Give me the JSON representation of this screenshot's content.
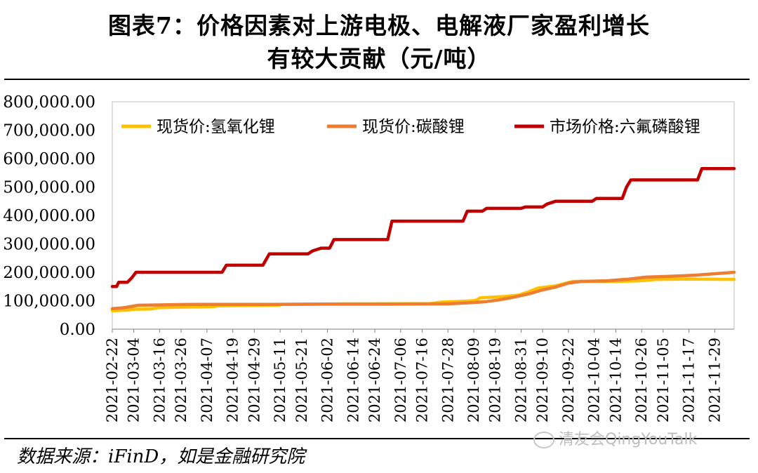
{
  "header": {
    "title_line1": "图表7：价格因素对上游电极、电解液厂家盈利增长",
    "title_line2": "有较大贡献（元/吨）"
  },
  "footer": {
    "source": "数据来源：iFinD，如是金融研究院",
    "watermark": "清友会QingYouTalk"
  },
  "chart_data": {
    "type": "line",
    "title": "图表7：价格因素对上游电极、电解液厂家盈利增长有较大贡献（元/吨）",
    "xlabel": "",
    "ylabel": "",
    "ylim": [
      0,
      800000
    ],
    "yticks": [
      "800,000.00",
      "700,000.00",
      "600,000.00",
      "500,000.00",
      "400,000.00",
      "300,000.00",
      "200,000.00",
      "100,000.00",
      "0.00"
    ],
    "ytick_values": [
      800000,
      700000,
      600000,
      500000,
      400000,
      300000,
      200000,
      100000,
      0
    ],
    "xlim": [
      "2021-02-22",
      "2021-12-08"
    ],
    "xticks": [
      "2021-02-22",
      "2021-03-04",
      "2021-03-16",
      "2021-03-26",
      "2021-04-07",
      "2021-04-19",
      "2021-04-29",
      "2021-05-11",
      "2021-05-21",
      "2021-06-02",
      "2021-06-14",
      "2021-06-24",
      "2021-07-06",
      "2021-07-16",
      "2021-07-28",
      "2021-08-09",
      "2021-08-19",
      "2021-08-31",
      "2021-09-10",
      "2021-09-22",
      "2021-10-04",
      "2021-10-14",
      "2021-10-26",
      "2021-11-05",
      "2021-11-17",
      "2021-11-29"
    ],
    "grid": false,
    "legend_position": "top",
    "series": [
      {
        "name": "现货价:氢氧化锂",
        "color": "#FFC000",
        "points": [
          [
            "2021-02-22",
            65000
          ],
          [
            "2021-03-01",
            67000
          ],
          [
            "2021-03-04",
            70000
          ],
          [
            "2021-03-12",
            71000
          ],
          [
            "2021-03-16",
            76000
          ],
          [
            "2021-04-10",
            79000
          ],
          [
            "2021-04-12",
            82000
          ],
          [
            "2021-05-10",
            84000
          ],
          [
            "2021-05-12",
            87000
          ],
          [
            "2021-06-10",
            89000
          ],
          [
            "2021-07-20",
            90000
          ],
          [
            "2021-07-25",
            95000
          ],
          [
            "2021-08-05",
            98000
          ],
          [
            "2021-08-10",
            101000
          ],
          [
            "2021-08-12",
            110000
          ],
          [
            "2021-08-24",
            115000
          ],
          [
            "2021-08-30",
            120000
          ],
          [
            "2021-09-03",
            130000
          ],
          [
            "2021-09-08",
            145000
          ],
          [
            "2021-09-16",
            152000
          ],
          [
            "2021-09-20",
            160000
          ],
          [
            "2021-09-24",
            168000
          ],
          [
            "2021-10-01",
            168000
          ],
          [
            "2021-10-14",
            168000
          ],
          [
            "2021-10-25",
            170000
          ],
          [
            "2021-11-02",
            175000
          ],
          [
            "2021-11-15",
            176000
          ],
          [
            "2021-12-08",
            175000
          ]
        ]
      },
      {
        "name": "现货价:碳酸锂",
        "color": "#ED7D31",
        "points": [
          [
            "2021-02-22",
            72000
          ],
          [
            "2021-02-27",
            75000
          ],
          [
            "2021-03-03",
            80000
          ],
          [
            "2021-03-06",
            84000
          ],
          [
            "2021-03-20",
            86000
          ],
          [
            "2021-04-01",
            87000
          ],
          [
            "2021-05-01",
            87000
          ],
          [
            "2021-06-01",
            88000
          ],
          [
            "2021-07-01",
            88000
          ],
          [
            "2021-07-28",
            89000
          ],
          [
            "2021-08-08",
            93000
          ],
          [
            "2021-08-15",
            97000
          ],
          [
            "2021-08-20",
            102000
          ],
          [
            "2021-08-26",
            110000
          ],
          [
            "2021-08-31",
            118000
          ],
          [
            "2021-09-04",
            125000
          ],
          [
            "2021-09-10",
            138000
          ],
          [
            "2021-09-16",
            148000
          ],
          [
            "2021-09-22",
            162000
          ],
          [
            "2021-09-28",
            168000
          ],
          [
            "2021-10-10",
            170000
          ],
          [
            "2021-10-20",
            176000
          ],
          [
            "2021-10-28",
            183000
          ],
          [
            "2021-11-08",
            186000
          ],
          [
            "2021-11-20",
            190000
          ],
          [
            "2021-12-08",
            200000
          ]
        ]
      },
      {
        "name": "市场价格:六氟磷酸锂",
        "color": "#C00000",
        "points": [
          [
            "2021-02-22",
            150000
          ],
          [
            "2021-02-24",
            150000
          ],
          [
            "2021-02-25",
            165000
          ],
          [
            "2021-03-01",
            165000
          ],
          [
            "2021-03-03",
            180000
          ],
          [
            "2021-03-05",
            200000
          ],
          [
            "2021-04-14",
            200000
          ],
          [
            "2021-04-16",
            225000
          ],
          [
            "2021-05-03",
            225000
          ],
          [
            "2021-05-06",
            265000
          ],
          [
            "2021-05-24",
            265000
          ],
          [
            "2021-05-26",
            275000
          ],
          [
            "2021-05-30",
            285000
          ],
          [
            "2021-06-03",
            285000
          ],
          [
            "2021-06-05",
            315000
          ],
          [
            "2021-06-30",
            315000
          ],
          [
            "2021-07-02",
            380000
          ],
          [
            "2021-08-04",
            380000
          ],
          [
            "2021-08-06",
            415000
          ],
          [
            "2021-08-13",
            415000
          ],
          [
            "2021-08-15",
            425000
          ],
          [
            "2021-08-31",
            425000
          ],
          [
            "2021-09-02",
            430000
          ],
          [
            "2021-09-10",
            430000
          ],
          [
            "2021-09-12",
            440000
          ],
          [
            "2021-09-16",
            450000
          ],
          [
            "2021-10-03",
            450000
          ],
          [
            "2021-10-05",
            460000
          ],
          [
            "2021-10-17",
            460000
          ],
          [
            "2021-10-19",
            500000
          ],
          [
            "2021-10-21",
            525000
          ],
          [
            "2021-11-21",
            525000
          ],
          [
            "2021-11-23",
            565000
          ],
          [
            "2021-12-08",
            565000
          ]
        ]
      }
    ]
  }
}
